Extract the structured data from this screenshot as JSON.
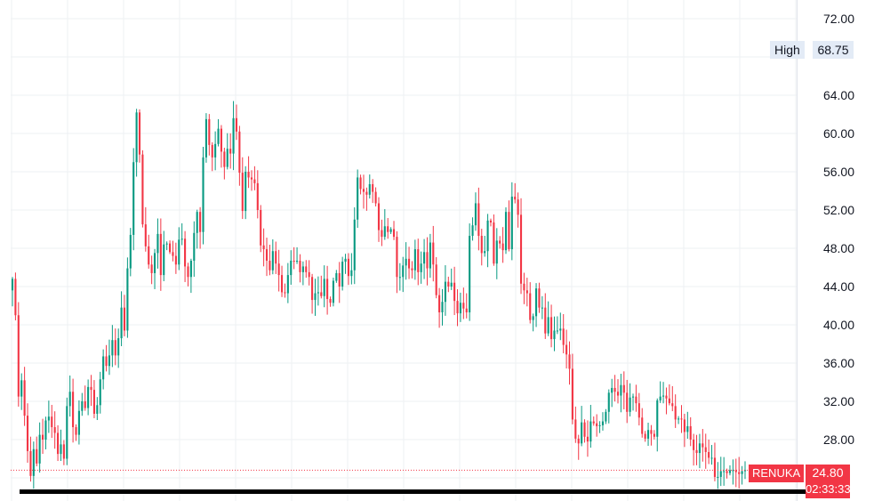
{
  "chart_data": {
    "type": "candlestick",
    "symbol": "RENUKA",
    "y_ticks": [
      "72.00",
      "64.00",
      "60.00",
      "56.00",
      "52.00",
      "48.00",
      "44.00",
      "40.00",
      "36.00",
      "32.00",
      "28.00"
    ],
    "ylim": [
      22,
      74
    ],
    "grid": true,
    "high_label": "High",
    "high_value": "68.75",
    "last_price": "24.80",
    "countdown": "02:33:33",
    "up_color": "#089981",
    "down_color": "#f23645",
    "series": [
      {
        "name": "RENUKA",
        "close": [
          44.8,
          41,
          32.5,
          34.2,
          30.5,
          26.8,
          24.2,
          27,
          25.5,
          28.5,
          28,
          30,
          30.4,
          29.3,
          28.7,
          26.5,
          27.5,
          26,
          31.5,
          33,
          29.3,
          28.5,
          31,
          32,
          31.3,
          33.5,
          33.2,
          30.7,
          31.6,
          34.3,
          36.7,
          35.7,
          36.8,
          38.4,
          36.8,
          38.6,
          41.8,
          39.4,
          45.9,
          49.4,
          57,
          62.2,
          57.8,
          50.5,
          48.2,
          46.3,
          45.4,
          47.5,
          49.5,
          45.2,
          48.4,
          48.5,
          47.6,
          47.2,
          46.3,
          48.9,
          49,
          46.1,
          45,
          46.7,
          49.6,
          51.8,
          49.7,
          57.5,
          61.5,
          58.8,
          57.5,
          58.9,
          60.5,
          58.1,
          56.5,
          58.4,
          57.9,
          61.6,
          60.2,
          55.9,
          51.9,
          56,
          55.4,
          55.2,
          54.8,
          52,
          48.3,
          47.9,
          46.7,
          45.7,
          47.7,
          46.4,
          45.2,
          43.4,
          43.3,
          45.2,
          46.7,
          46.6,
          46.7,
          45.5,
          46.1,
          45.5,
          45,
          42.6,
          43.3,
          43.4,
          43,
          44.8,
          42.7,
          42.3,
          44.6,
          45.4,
          44,
          46.6,
          46.9,
          45.1,
          45.7,
          51,
          55.4,
          54.2,
          53.9,
          53.6,
          54.7,
          53.9,
          52.7,
          49.9,
          49.2,
          50.3,
          49.7,
          50,
          49.2,
          45,
          45,
          46.2,
          46.9,
          45.9,
          45.7,
          47.9,
          45.5,
          46.4,
          47.6,
          45.9,
          48.6,
          46.3,
          43.1,
          41.3,
          42.4,
          44.5,
          44,
          44.4,
          42.5,
          41.2,
          42.3,
          41.7,
          41.3,
          49.3,
          50.4,
          52.7,
          49.3,
          47.5,
          47.7,
          50.9,
          50.7,
          46.4,
          48.8,
          48.5,
          47.8,
          51.8,
          47.9,
          53.4,
          53.1,
          51.5,
          44.3,
          43.6,
          43.3,
          40.5,
          40.9,
          43.8,
          41.8,
          41.8,
          39.1,
          40.8,
          38.5,
          39.4,
          39.4,
          39.6,
          37.9,
          36.9,
          35.4,
          30.1,
          28.1,
          27.6,
          29.8,
          28.3,
          27.8,
          29.9,
          29.7,
          29.4,
          29.5,
          29.9,
          30.9,
          32.9,
          33.4,
          33,
          32.6,
          33.7,
          32.9,
          30.9,
          32.4,
          32.5,
          31.8,
          30.3,
          28.6,
          28.1,
          29,
          28.6,
          28.3,
          32.1,
          32.5,
          32.6,
          32.3,
          31.8,
          31.5,
          30.1,
          30.2,
          30.1,
          28.8,
          29.4,
          28,
          26.9,
          26.6,
          27.6,
          27.2,
          26.7,
          26.1,
          26.1,
          24.1,
          24.1,
          24.7,
          24.7,
          24.5,
          24.8,
          24.8,
          24.6,
          24.4,
          24.7,
          24.8
        ]
      }
    ]
  }
}
